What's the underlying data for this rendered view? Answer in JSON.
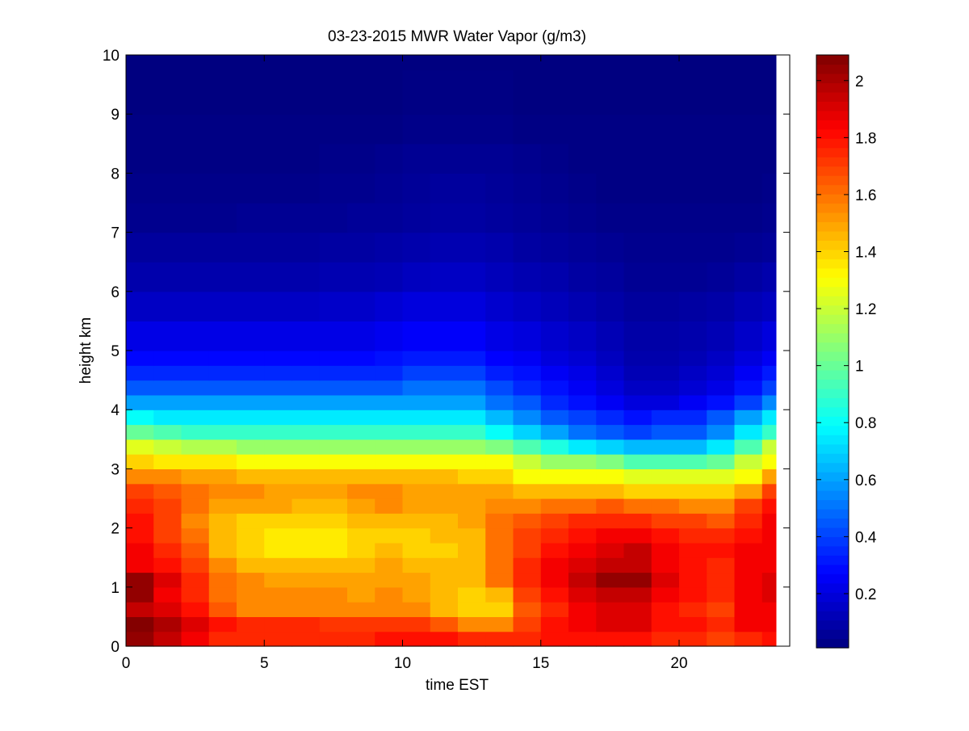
{
  "chart_data": {
    "type": "heatmap",
    "title": "03-23-2015 MWR Water Vapor (g/m3)",
    "xlabel": "time EST",
    "ylabel": "height km",
    "xlim": [
      0,
      24
    ],
    "ylim": [
      0,
      10
    ],
    "xticks": [
      0,
      5,
      10,
      15,
      20
    ],
    "yticks": [
      0,
      1,
      2,
      3,
      4,
      5,
      6,
      7,
      8,
      9,
      10
    ],
    "colorbar": {
      "colormap": "jet",
      "range": [
        0.01,
        2.09
      ],
      "ticks": [
        0.2,
        0.4,
        0.6,
        0.8,
        1,
        1.2,
        1.4,
        1.6,
        1.8,
        2
      ]
    },
    "time_bins_EST": [
      0,
      1,
      2,
      3,
      4,
      5,
      6,
      7,
      8,
      9,
      10,
      11,
      12,
      13,
      14,
      15,
      16,
      17,
      18,
      19,
      20,
      21,
      22,
      23
    ],
    "time_end_EST": 23.5,
    "height_levels_km": [
      0,
      0.25,
      0.5,
      0.75,
      1,
      1.25,
      1.5,
      1.75,
      2,
      2.25,
      2.5,
      2.75,
      3,
      3.25,
      3.5,
      3.75,
      4,
      4.25,
      4.5,
      4.75,
      5,
      5.5,
      6,
      6.5,
      7,
      7.5,
      8,
      8.5,
      9,
      9.75
    ],
    "water_vapor_g_m3": [
      [
        2.05,
        1.95,
        1.85,
        1.75,
        1.75,
        1.75,
        1.75,
        1.75,
        1.75,
        1.8,
        1.8,
        1.8,
        1.75,
        1.75,
        1.75,
        1.8,
        1.8,
        1.8,
        1.8,
        1.75,
        1.75,
        1.7,
        1.75,
        1.8
      ],
      [
        2.08,
        2.0,
        1.9,
        1.8,
        1.75,
        1.75,
        1.75,
        1.72,
        1.72,
        1.72,
        1.72,
        1.65,
        1.55,
        1.55,
        1.7,
        1.8,
        1.85,
        1.9,
        1.9,
        1.8,
        1.8,
        1.75,
        1.85,
        1.85
      ],
      [
        1.95,
        1.9,
        1.8,
        1.65,
        1.55,
        1.55,
        1.55,
        1.55,
        1.55,
        1.55,
        1.55,
        1.45,
        1.4,
        1.4,
        1.65,
        1.75,
        1.85,
        1.9,
        1.9,
        1.8,
        1.75,
        1.7,
        1.85,
        1.85
      ],
      [
        2.05,
        1.85,
        1.75,
        1.6,
        1.55,
        1.55,
        1.55,
        1.55,
        1.5,
        1.55,
        1.5,
        1.45,
        1.4,
        1.45,
        1.7,
        1.8,
        1.9,
        1.95,
        1.95,
        1.85,
        1.8,
        1.75,
        1.85,
        1.9
      ],
      [
        2.05,
        1.9,
        1.75,
        1.6,
        1.55,
        1.5,
        1.5,
        1.5,
        1.5,
        1.5,
        1.5,
        1.45,
        1.45,
        1.6,
        1.75,
        1.85,
        1.95,
        2.05,
        2.05,
        1.9,
        1.8,
        1.75,
        1.85,
        1.9
      ],
      [
        1.85,
        1.8,
        1.7,
        1.55,
        1.45,
        1.45,
        1.45,
        1.45,
        1.45,
        1.5,
        1.45,
        1.45,
        1.45,
        1.6,
        1.75,
        1.85,
        1.9,
        1.95,
        1.95,
        1.85,
        1.8,
        1.75,
        1.85,
        1.85
      ],
      [
        1.85,
        1.75,
        1.65,
        1.45,
        1.4,
        1.35,
        1.35,
        1.35,
        1.4,
        1.45,
        1.4,
        1.4,
        1.45,
        1.6,
        1.7,
        1.8,
        1.85,
        1.9,
        1.95,
        1.85,
        1.8,
        1.8,
        1.85,
        1.85
      ],
      [
        1.8,
        1.7,
        1.6,
        1.45,
        1.4,
        1.35,
        1.35,
        1.35,
        1.4,
        1.4,
        1.4,
        1.45,
        1.45,
        1.6,
        1.7,
        1.75,
        1.8,
        1.85,
        1.85,
        1.8,
        1.75,
        1.75,
        1.8,
        1.85
      ],
      [
        1.8,
        1.7,
        1.55,
        1.45,
        1.4,
        1.4,
        1.4,
        1.4,
        1.45,
        1.45,
        1.45,
        1.45,
        1.5,
        1.6,
        1.65,
        1.7,
        1.75,
        1.75,
        1.75,
        1.7,
        1.7,
        1.65,
        1.75,
        1.85
      ],
      [
        1.75,
        1.7,
        1.6,
        1.5,
        1.5,
        1.5,
        1.45,
        1.45,
        1.5,
        1.55,
        1.5,
        1.5,
        1.5,
        1.55,
        1.55,
        1.6,
        1.6,
        1.65,
        1.6,
        1.6,
        1.55,
        1.55,
        1.7,
        1.8
      ],
      [
        1.7,
        1.65,
        1.6,
        1.55,
        1.55,
        1.5,
        1.5,
        1.5,
        1.55,
        1.55,
        1.5,
        1.5,
        1.5,
        1.5,
        1.45,
        1.45,
        1.45,
        1.45,
        1.4,
        1.4,
        1.4,
        1.4,
        1.5,
        1.7
      ],
      [
        1.55,
        1.55,
        1.5,
        1.5,
        1.45,
        1.45,
        1.45,
        1.45,
        1.45,
        1.45,
        1.45,
        1.45,
        1.4,
        1.4,
        1.3,
        1.3,
        1.3,
        1.3,
        1.25,
        1.25,
        1.25,
        1.25,
        1.3,
        1.5
      ],
      [
        1.4,
        1.35,
        1.35,
        1.35,
        1.3,
        1.3,
        1.3,
        1.3,
        1.3,
        1.3,
        1.3,
        1.3,
        1.3,
        1.3,
        1.2,
        1.1,
        1.1,
        1.05,
        0.95,
        0.95,
        0.95,
        1.0,
        1.2,
        1.3
      ],
      [
        1.25,
        1.2,
        1.15,
        1.15,
        1.1,
        1.1,
        1.1,
        1.1,
        1.1,
        1.1,
        1.1,
        1.1,
        1.1,
        1.05,
        0.95,
        0.85,
        0.75,
        0.7,
        0.65,
        0.65,
        0.65,
        0.75,
        0.95,
        1.2
      ],
      [
        1.0,
        0.95,
        0.9,
        0.9,
        0.9,
        0.9,
        0.9,
        0.9,
        0.9,
        0.9,
        0.9,
        0.9,
        0.9,
        0.8,
        0.7,
        0.6,
        0.5,
        0.45,
        0.4,
        0.45,
        0.45,
        0.55,
        0.75,
        0.9
      ],
      [
        0.8,
        0.75,
        0.75,
        0.75,
        0.75,
        0.75,
        0.75,
        0.75,
        0.75,
        0.75,
        0.75,
        0.75,
        0.75,
        0.65,
        0.55,
        0.45,
        0.4,
        0.35,
        0.3,
        0.35,
        0.35,
        0.45,
        0.6,
        0.75
      ],
      [
        0.6,
        0.6,
        0.6,
        0.6,
        0.6,
        0.6,
        0.6,
        0.6,
        0.6,
        0.6,
        0.6,
        0.6,
        0.6,
        0.5,
        0.45,
        0.35,
        0.3,
        0.25,
        0.2,
        0.2,
        0.25,
        0.3,
        0.4,
        0.55
      ],
      [
        0.45,
        0.45,
        0.45,
        0.45,
        0.45,
        0.45,
        0.45,
        0.45,
        0.45,
        0.45,
        0.5,
        0.5,
        0.5,
        0.42,
        0.35,
        0.3,
        0.25,
        0.2,
        0.15,
        0.15,
        0.18,
        0.22,
        0.3,
        0.4
      ],
      [
        0.35,
        0.35,
        0.35,
        0.35,
        0.35,
        0.35,
        0.35,
        0.35,
        0.35,
        0.35,
        0.4,
        0.4,
        0.4,
        0.33,
        0.3,
        0.25,
        0.22,
        0.17,
        0.12,
        0.12,
        0.15,
        0.18,
        0.25,
        0.32
      ],
      [
        0.28,
        0.28,
        0.28,
        0.28,
        0.28,
        0.28,
        0.28,
        0.28,
        0.28,
        0.3,
        0.32,
        0.32,
        0.32,
        0.27,
        0.25,
        0.2,
        0.18,
        0.14,
        0.1,
        0.1,
        0.12,
        0.15,
        0.2,
        0.25
      ],
      [
        0.22,
        0.22,
        0.22,
        0.22,
        0.22,
        0.22,
        0.22,
        0.22,
        0.22,
        0.24,
        0.26,
        0.26,
        0.26,
        0.22,
        0.2,
        0.17,
        0.15,
        0.12,
        0.09,
        0.09,
        0.1,
        0.12,
        0.16,
        0.2
      ],
      [
        0.15,
        0.15,
        0.15,
        0.15,
        0.15,
        0.15,
        0.15,
        0.16,
        0.16,
        0.18,
        0.2,
        0.2,
        0.2,
        0.17,
        0.15,
        0.13,
        0.11,
        0.09,
        0.07,
        0.07,
        0.08,
        0.09,
        0.12,
        0.14
      ],
      [
        0.1,
        0.1,
        0.1,
        0.1,
        0.1,
        0.1,
        0.1,
        0.11,
        0.11,
        0.12,
        0.14,
        0.15,
        0.15,
        0.13,
        0.11,
        0.1,
        0.08,
        0.07,
        0.05,
        0.05,
        0.05,
        0.06,
        0.08,
        0.1
      ],
      [
        0.07,
        0.07,
        0.07,
        0.07,
        0.07,
        0.07,
        0.07,
        0.08,
        0.08,
        0.09,
        0.1,
        0.11,
        0.11,
        0.1,
        0.08,
        0.07,
        0.06,
        0.05,
        0.04,
        0.04,
        0.04,
        0.04,
        0.05,
        0.06
      ],
      [
        0.04,
        0.04,
        0.04,
        0.04,
        0.05,
        0.05,
        0.05,
        0.05,
        0.06,
        0.06,
        0.07,
        0.08,
        0.08,
        0.07,
        0.06,
        0.05,
        0.04,
        0.03,
        0.03,
        0.03,
        0.03,
        0.03,
        0.03,
        0.04
      ],
      [
        0.03,
        0.03,
        0.03,
        0.03,
        0.03,
        0.03,
        0.03,
        0.04,
        0.04,
        0.05,
        0.06,
        0.07,
        0.07,
        0.06,
        0.05,
        0.04,
        0.03,
        0.02,
        0.02,
        0.02,
        0.02,
        0.02,
        0.02,
        0.03
      ],
      [
        0.02,
        0.02,
        0.02,
        0.02,
        0.02,
        0.02,
        0.02,
        0.03,
        0.03,
        0.04,
        0.05,
        0.05,
        0.05,
        0.05,
        0.04,
        0.03,
        0.02,
        0.02,
        0.02,
        0.02,
        0.02,
        0.02,
        0.02,
        0.02
      ],
      [
        0.02,
        0.02,
        0.02,
        0.02,
        0.02,
        0.02,
        0.02,
        0.02,
        0.02,
        0.02,
        0.03,
        0.03,
        0.03,
        0.03,
        0.02,
        0.02,
        0.02,
        0.02,
        0.02,
        0.02,
        0.02,
        0.02,
        0.02,
        0.02
      ],
      [
        0.01,
        0.01,
        0.01,
        0.01,
        0.01,
        0.01,
        0.01,
        0.01,
        0.01,
        0.01,
        0.02,
        0.02,
        0.02,
        0.02,
        0.01,
        0.01,
        0.01,
        0.01,
        0.01,
        0.01,
        0.01,
        0.01,
        0.01,
        0.01
      ],
      [
        0.01,
        0.01,
        0.01,
        0.01,
        0.01,
        0.01,
        0.01,
        0.01,
        0.01,
        0.01,
        0.01,
        0.01,
        0.01,
        0.01,
        0.01,
        0.01,
        0.01,
        0.01,
        0.01,
        0.01,
        0.01,
        0.01,
        0.01,
        0.01
      ]
    ]
  }
}
